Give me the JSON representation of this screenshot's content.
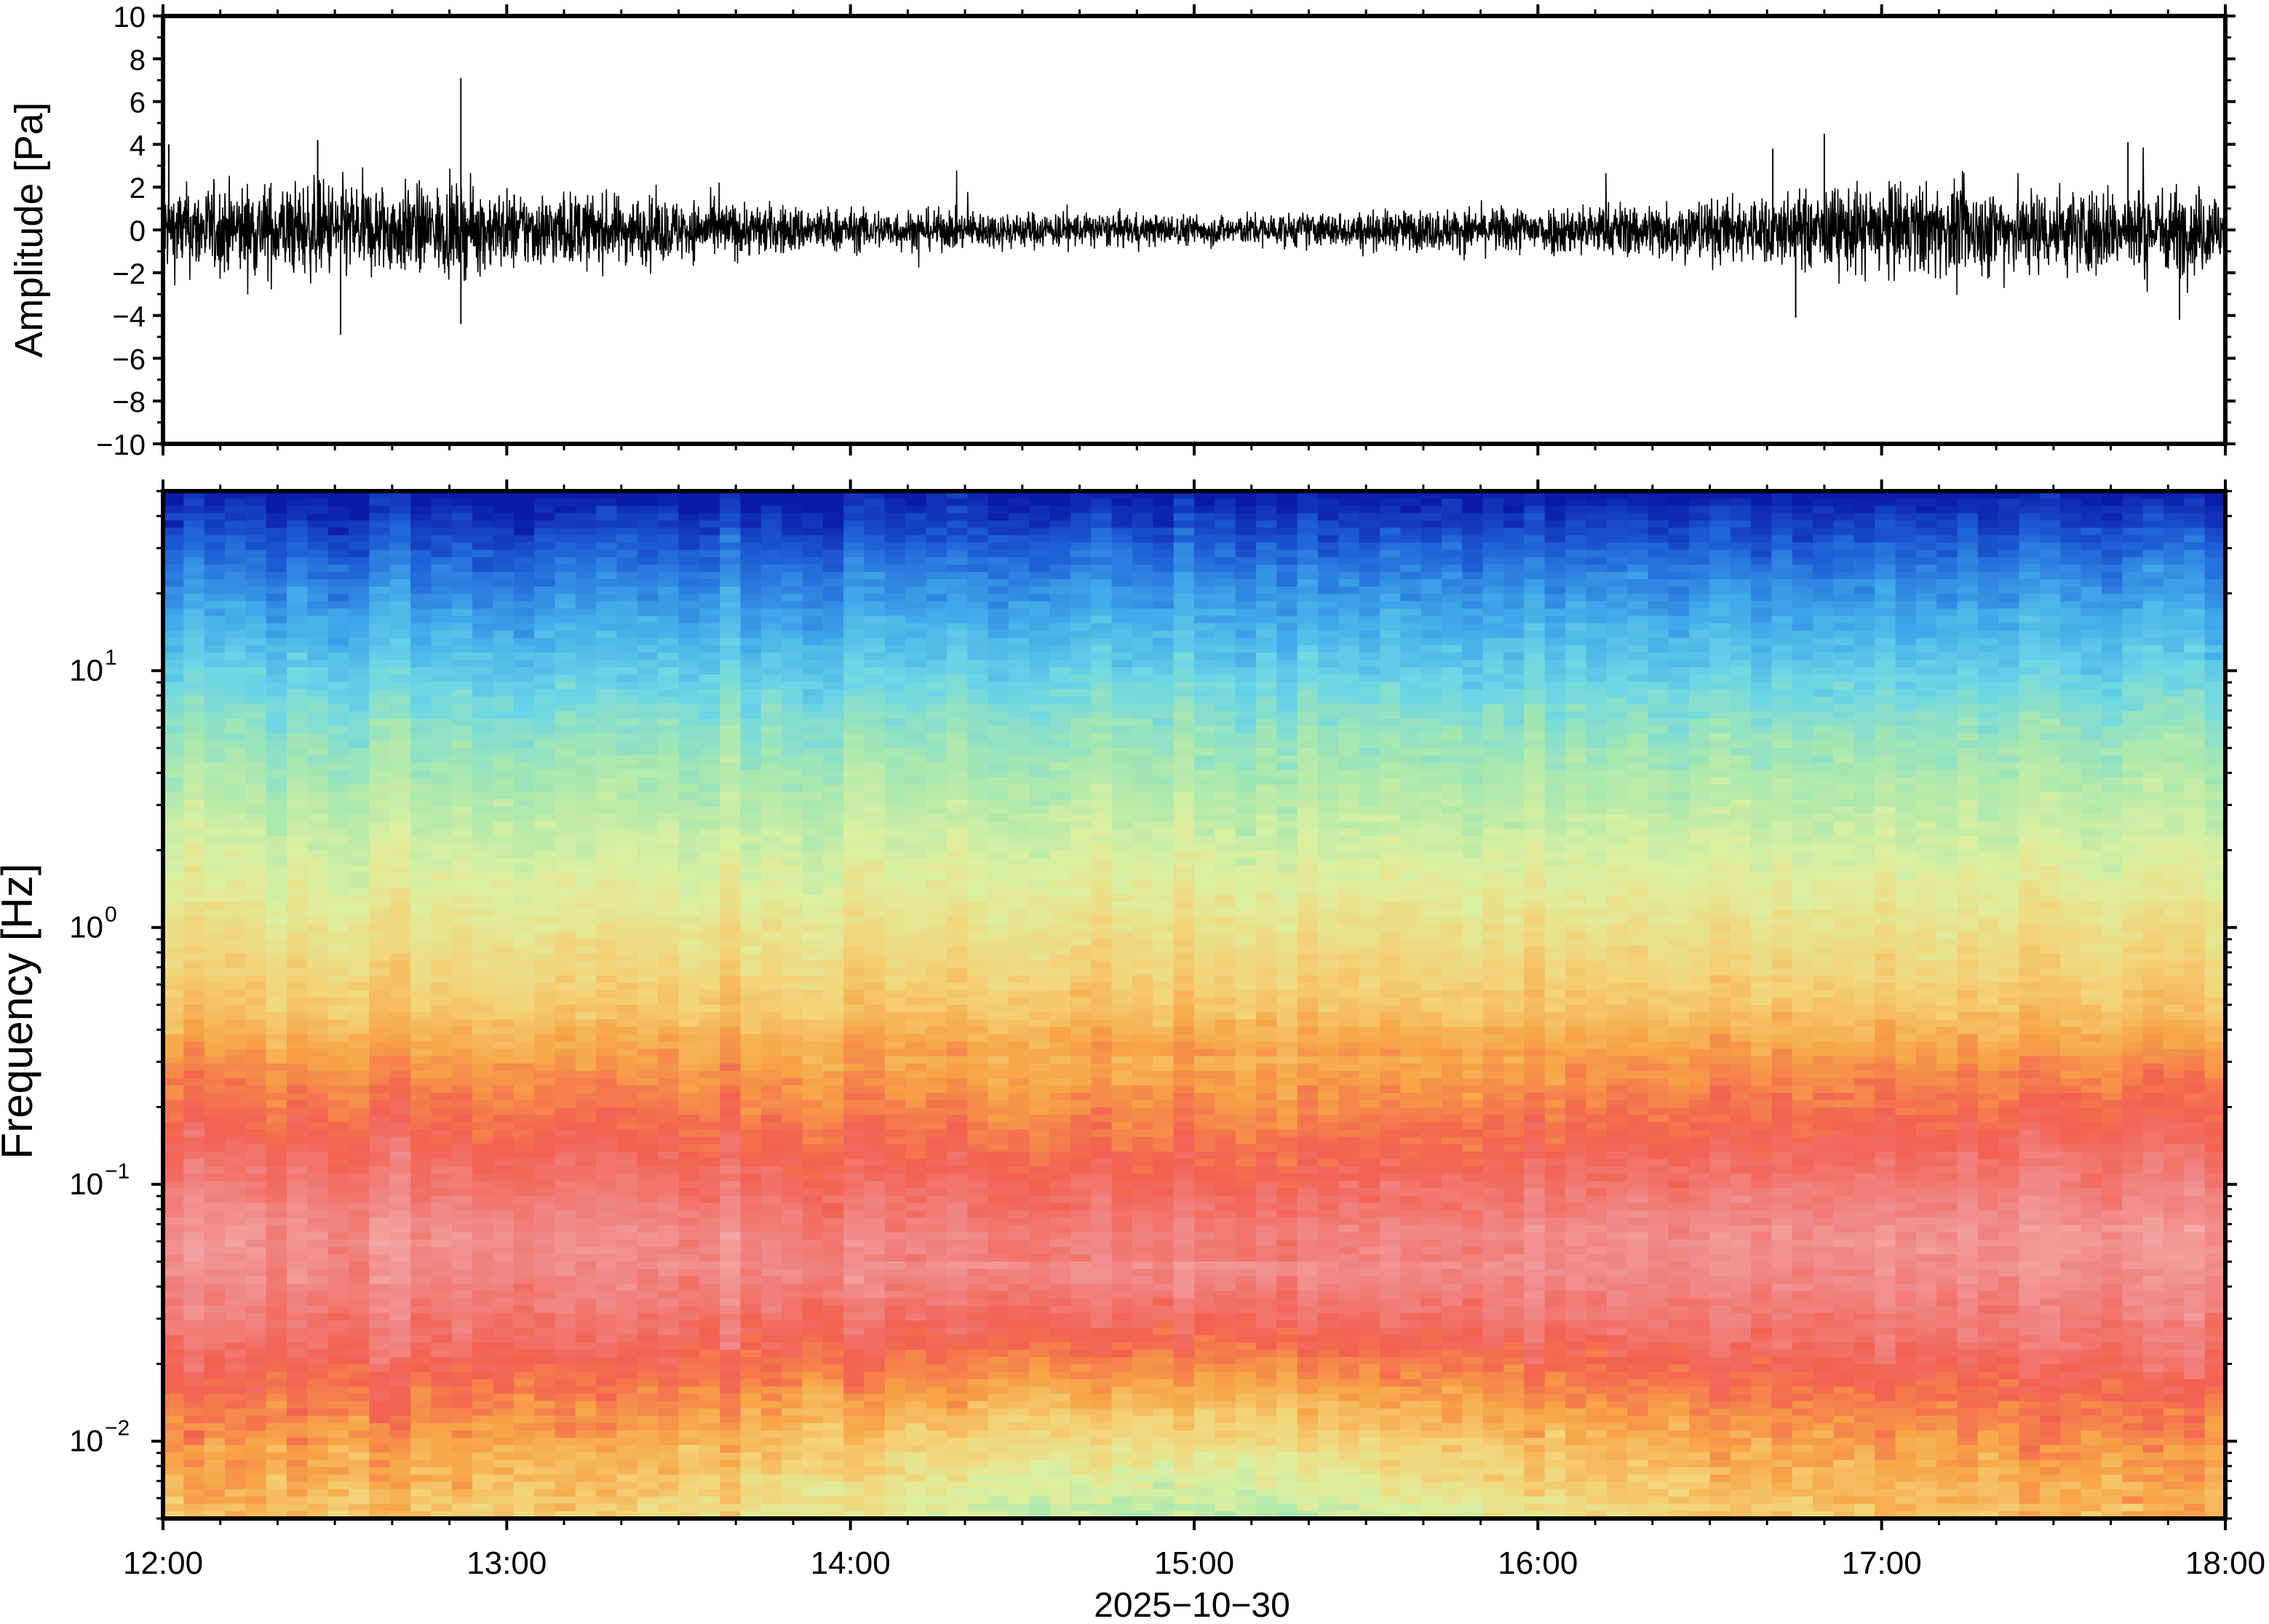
{
  "chart_data": [
    {
      "type": "line",
      "title": "",
      "xlabel": "",
      "ylabel": "Amplitude [Pa]",
      "ylim": [
        -10,
        10
      ],
      "yticks": [
        -10,
        -8,
        -6,
        -4,
        -2,
        0,
        2,
        4,
        6,
        8,
        10
      ],
      "ytick_labels": [
        "−10",
        "−8",
        "−6",
        "−4",
        "−2",
        "0",
        "2",
        "4",
        "6",
        "8",
        "10"
      ],
      "x_range": [
        "12:00",
        "18:00"
      ],
      "grid": false,
      "series": [
        {
          "envelope": {
            "t": [
              "12:00",
              "12:30",
              "13:00",
              "13:30",
              "14:00",
              "14:30",
              "15:00",
              "15:30",
              "16:00",
              "16:30",
              "17:00",
              "17:30",
              "18:00"
            ],
            "typical_amplitude": [
              1.4,
              1.6,
              1.3,
              1.0,
              0.7,
              0.6,
              0.5,
              0.6,
              0.8,
              1.0,
              1.5,
              1.4,
              1.4
            ]
          },
          "peaks": [
            {
              "t": "12:01",
              "y": 4.0
            },
            {
              "t": "12:27",
              "y": 4.2
            },
            {
              "t": "12:31",
              "y": -4.9
            },
            {
              "t": "12:52",
              "y": 7.1
            },
            {
              "t": "12:52",
              "y": -4.4
            },
            {
              "t": "16:41",
              "y": 3.8
            },
            {
              "t": "16:50",
              "y": 4.5
            },
            {
              "t": "16:45",
              "y": -4.1
            },
            {
              "t": "17:43",
              "y": 4.1
            },
            {
              "t": "17:52",
              "y": -4.2
            }
          ]
        }
      ]
    },
    {
      "type": "heatmap",
      "title": "",
      "ylabel": "Frequency [Hz]",
      "xlabel": "2025−10−30",
      "y_scale": "log",
      "ylim": [
        0.005,
        50
      ],
      "yticks": [
        0.01,
        0.1,
        1,
        10
      ],
      "ytick_labels": [
        {
          "base": "10",
          "exp": "−2"
        },
        {
          "base": "10",
          "exp": "−1"
        },
        {
          "base": "10",
          "exp": "0"
        },
        {
          "base": "10",
          "exp": "1"
        }
      ],
      "xticks": [
        "12:00",
        "13:00",
        "14:00",
        "15:00",
        "16:00",
        "17:00",
        "18:00"
      ],
      "colormap": [
        "#0a1aa8",
        "#1f63d8",
        "#3fa8ea",
        "#6ad6e6",
        "#a8e8b0",
        "#dcf0a0",
        "#f4d478",
        "#f7a446",
        "#f26050",
        "#f08a8a",
        "#f8b4b4"
      ],
      "description": "power spectrum vs time; high power (red/pink) at low frequency, low power (blue) at high frequency",
      "grid": false
    }
  ]
}
